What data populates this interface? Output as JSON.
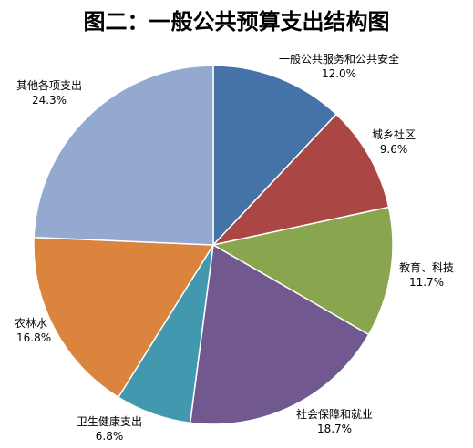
{
  "chart_data": {
    "type": "pie",
    "title": "图二：一般公共预算支出结构图",
    "categories": [
      "一般公共服务和公共安全",
      "城乡社区",
      "教育、科技",
      "社会保障和就业",
      "卫生健康支出",
      "农林水",
      "其他各项支出"
    ],
    "values": [
      12.0,
      9.6,
      11.7,
      18.7,
      6.8,
      16.8,
      24.3
    ],
    "value_labels": [
      "12.0%",
      "9.6%",
      "11.7%",
      "18.7%",
      "6.8%",
      "16.8%",
      "24.3%"
    ],
    "colors": [
      "#4572A7",
      "#AA4643",
      "#89A54E",
      "#71588F",
      "#4198AF",
      "#DB843D",
      "#93A9CF"
    ],
    "start_angle": "12 o'clock",
    "direction": "clockwise",
    "legend": "none"
  }
}
